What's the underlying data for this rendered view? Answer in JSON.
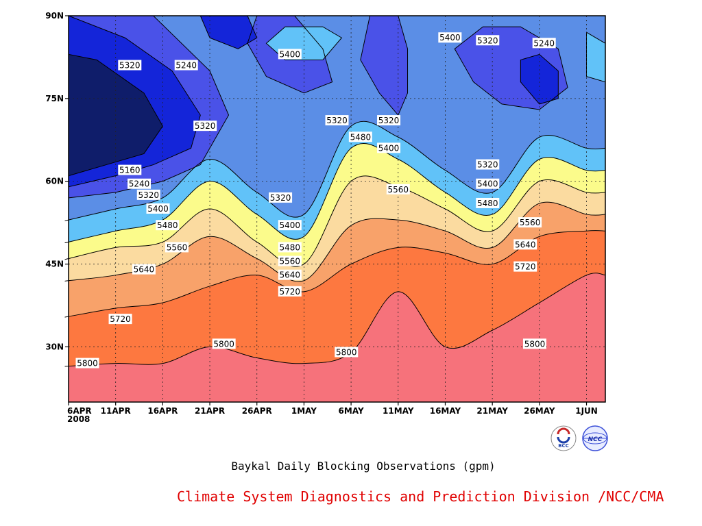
{
  "chart_data": {
    "type": "heatmap",
    "subtype": "filled-contour",
    "title": "Baykal Daily Blocking Observations (gpm)",
    "credit": "Climate System Diagnostics and Prediction Division /NCC/CMA",
    "x_ticks": [
      "6APR",
      "11APR",
      "16APR",
      "21APR",
      "26APR",
      "1MAY",
      "6MAY",
      "11MAY",
      "16MAY",
      "21MAY",
      "26MAY",
      "1JUN"
    ],
    "x_year_label": "2008",
    "y_ticks": [
      "30N",
      "45N",
      "60N",
      "75N",
      "90N"
    ],
    "y_range_deg": [
      20,
      90
    ],
    "x_range_days": [
      0,
      57
    ],
    "grid": true,
    "contour_levels": [
      5160,
      5240,
      5320,
      5400,
      5480,
      5560,
      5640,
      5720,
      5800
    ],
    "fill_colors": {
      "below_5160": "#0f1d6a",
      "5160_5240": "#1425d9",
      "5240_5320": "#4a52e8",
      "5320_5400": "#5b8ee6",
      "5400_5480": "#61c2f8",
      "5480_5560": "#fbfb8b",
      "5560_5640": "#fbdba0",
      "5640_5720": "#f8a26a",
      "5720_5800": "#fd7840",
      "above_5800": "#f6727b"
    },
    "zonal_profiles": [
      {
        "day": 0,
        "contours_lat": {
          "5480": 49,
          "5560": 46,
          "5640": 42,
          "5720": 35.5,
          "5800": 26.5
        }
      },
      {
        "day": 5,
        "contours_lat": {
          "5480": 51,
          "5560": 48,
          "5640": 43,
          "5720": 37,
          "5800": 27
        }
      },
      {
        "day": 10,
        "contours_lat": {
          "5480": 53,
          "5560": 49,
          "5640": 45,
          "5720": 38,
          "5800": 27
        }
      },
      {
        "day": 15,
        "contours_lat": {
          "5480": 60,
          "5560": 55,
          "5640": 50,
          "5720": 41,
          "5800": 30
        }
      },
      {
        "day": 20,
        "contours_lat": {
          "5480": 54,
          "5560": 49,
          "5640": 46,
          "5720": 43,
          "5800": 28
        }
      },
      {
        "day": 25,
        "contours_lat": {
          "5480": 50,
          "5560": 45,
          "5640": 42,
          "5720": 40,
          "5800": 27
        }
      },
      {
        "day": 30,
        "contours_lat": {
          "5480": 66,
          "5560": 60,
          "5640": 52,
          "5720": 45,
          "5800": 29
        }
      },
      {
        "day": 35,
        "contours_lat": {
          "5480": 64,
          "5560": 59,
          "5640": 53,
          "5720": 48,
          "5800": 40
        }
      },
      {
        "day": 40,
        "contours_lat": {
          "5480": 58,
          "5560": 55,
          "5640": 51,
          "5720": 47,
          "5800": 30
        }
      },
      {
        "day": 45,
        "contours_lat": {
          "5480": 54,
          "5560": 51,
          "5640": 48,
          "5720": 45,
          "5800": 33
        }
      },
      {
        "day": 50,
        "contours_lat": {
          "5480": 64,
          "5560": 60,
          "5640": 56,
          "5720": 50,
          "5800": 38
        }
      },
      {
        "day": 55,
        "contours_lat": {
          "5480": 62,
          "5560": 58,
          "5640": 54,
          "5720": 51,
          "5800": 43
        }
      }
    ],
    "contour_labels": [
      {
        "day": 6.5,
        "lat": 81,
        "value": "5320"
      },
      {
        "day": 12.5,
        "lat": 81,
        "value": "5240"
      },
      {
        "day": 14.5,
        "lat": 70,
        "value": "5320"
      },
      {
        "day": 23.5,
        "lat": 83,
        "value": "5400"
      },
      {
        "day": 28.5,
        "lat": 71,
        "value": "5320"
      },
      {
        "day": 31,
        "lat": 68,
        "value": "5480"
      },
      {
        "day": 34,
        "lat": 71,
        "value": "5320"
      },
      {
        "day": 34,
        "lat": 66,
        "value": "5400"
      },
      {
        "day": 40.5,
        "lat": 86,
        "value": "5400"
      },
      {
        "day": 44.5,
        "lat": 85.5,
        "value": "5320"
      },
      {
        "day": 50.5,
        "lat": 85,
        "value": "5240"
      },
      {
        "day": 44.5,
        "lat": 63,
        "value": "5320"
      },
      {
        "day": 6.5,
        "lat": 62,
        "value": "5160"
      },
      {
        "day": 7.5,
        "lat": 59.5,
        "value": "5240"
      },
      {
        "day": 8.5,
        "lat": 57.5,
        "value": "5320"
      },
      {
        "day": 9.5,
        "lat": 55,
        "value": "5400"
      },
      {
        "day": 10.5,
        "lat": 52,
        "value": "5480"
      },
      {
        "day": 11.5,
        "lat": 48,
        "value": "5560"
      },
      {
        "day": 8,
        "lat": 44,
        "value": "5640"
      },
      {
        "day": 5.5,
        "lat": 35,
        "value": "5720"
      },
      {
        "day": 2,
        "lat": 27,
        "value": "5800"
      },
      {
        "day": 16.5,
        "lat": 30.5,
        "value": "5800"
      },
      {
        "day": 22.5,
        "lat": 57,
        "value": "5320"
      },
      {
        "day": 23.5,
        "lat": 52,
        "value": "5400"
      },
      {
        "day": 23.5,
        "lat": 48,
        "value": "5480"
      },
      {
        "day": 23.5,
        "lat": 45.5,
        "value": "5560"
      },
      {
        "day": 23.5,
        "lat": 43,
        "value": "5640"
      },
      {
        "day": 23.5,
        "lat": 40,
        "value": "5720"
      },
      {
        "day": 29.5,
        "lat": 29,
        "value": "5800"
      },
      {
        "day": 35,
        "lat": 58.5,
        "value": "5560"
      },
      {
        "day": 44.5,
        "lat": 59.5,
        "value": "5400"
      },
      {
        "day": 44.5,
        "lat": 56,
        "value": "5480"
      },
      {
        "day": 49,
        "lat": 52.5,
        "value": "5560"
      },
      {
        "day": 48.5,
        "lat": 48.5,
        "value": "5640"
      },
      {
        "day": 48.5,
        "lat": 44.5,
        "value": "5720"
      },
      {
        "day": 49.5,
        "lat": 30.5,
        "value": "5800"
      }
    ]
  },
  "logos": [
    {
      "name": "bcc-logo",
      "text": "BCC"
    },
    {
      "name": "ncc-logo",
      "text": "NCC"
    }
  ]
}
